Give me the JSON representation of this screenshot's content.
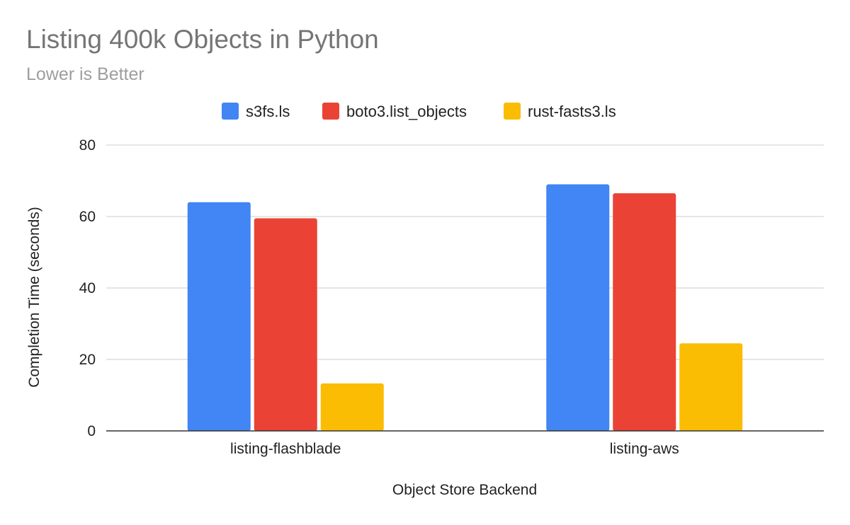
{
  "chart_data": {
    "type": "bar",
    "title": "Listing 400k Objects in Python",
    "subtitle": "Lower is Better",
    "xlabel": "Object Store Backend",
    "ylabel": "Completion Time (seconds)",
    "categories": [
      "listing-flashblade",
      "listing-aws"
    ],
    "series": [
      {
        "name": "s3fs.ls",
        "color": "#4285f4",
        "values": [
          64,
          69
        ]
      },
      {
        "name": "boto3.list_objects",
        "color": "#ea4335",
        "values": [
          59.5,
          66.5
        ]
      },
      {
        "name": "rust-fasts3.ls",
        "color": "#fbbc04",
        "values": [
          13.3,
          24.5
        ]
      }
    ],
    "ylim": [
      0,
      80
    ],
    "yticks": [
      0,
      20,
      40,
      60,
      80
    ],
    "grid": true,
    "legend_position": "top"
  }
}
